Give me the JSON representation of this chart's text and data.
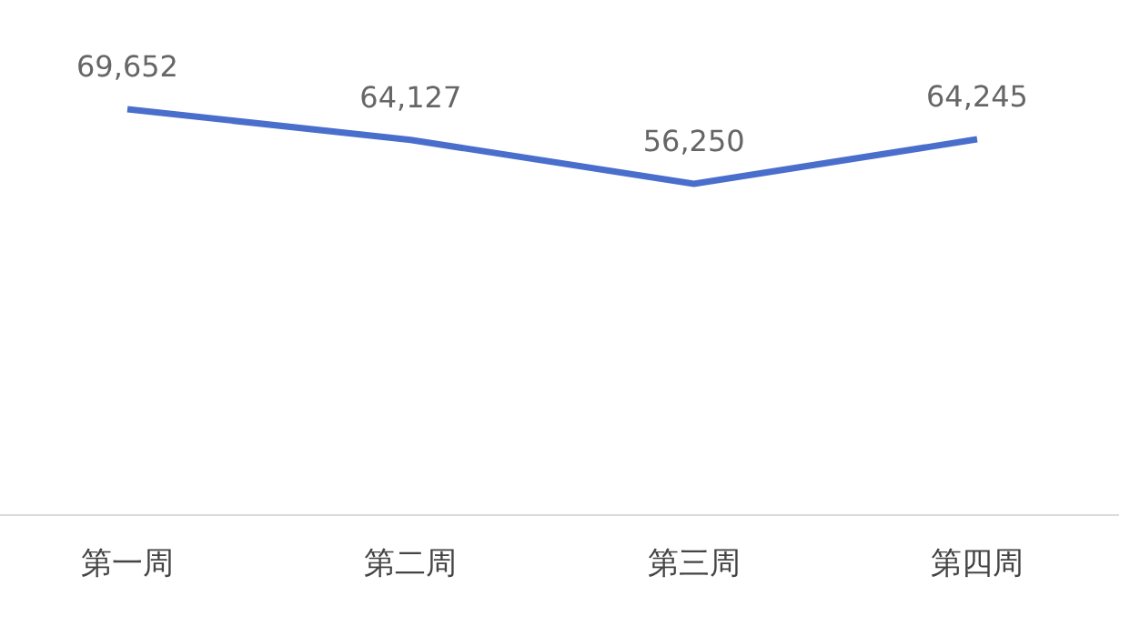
{
  "chart_data": {
    "type": "line",
    "categories": [
      "第一周",
      "第二周",
      "第三周",
      "第四周"
    ],
    "series": [
      {
        "color": "#4a6ecb",
        "values": [
          69652,
          64127,
          56250,
          64245
        ],
        "value_labels": [
          "69,652",
          "64,127",
          "56,250",
          "64,245"
        ]
      }
    ],
    "tick_labels": "x",
    "marker": "none",
    "line_style": "solid"
  }
}
